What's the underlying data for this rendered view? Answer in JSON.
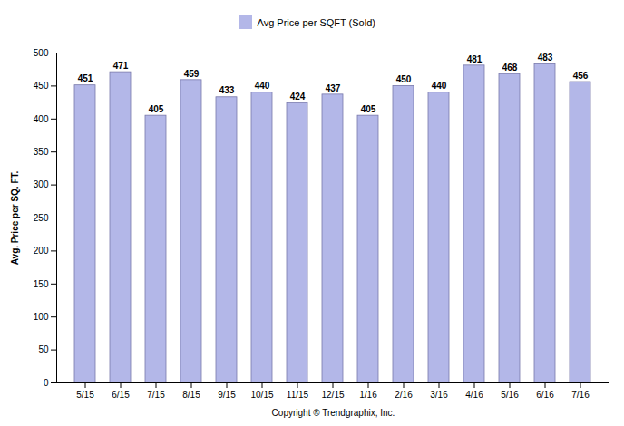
{
  "chart_data": {
    "type": "bar",
    "categories": [
      "5/15",
      "6/15",
      "7/15",
      "8/15",
      "9/15",
      "10/15",
      "11/15",
      "12/15",
      "1/16",
      "2/16",
      "3/16",
      "4/16",
      "5/16",
      "6/16",
      "7/16"
    ],
    "series": [
      {
        "name": "Avg Price per SQFT (Sold)",
        "color": "#b3b7e8",
        "values": [
          451,
          471,
          405,
          459,
          433,
          440,
          424,
          437,
          405,
          450,
          440,
          481,
          468,
          483,
          456
        ]
      }
    ],
    "xlabel": "Copyright ® Trendgraphix, Inc.",
    "ylabel": "Avg. Price per SQ. FT.",
    "ylim": [
      0,
      500
    ],
    "yticks": [
      0,
      50,
      100,
      150,
      200,
      250,
      300,
      350,
      400,
      450,
      500
    ],
    "grid": false,
    "legend": "top",
    "data_labels": true
  }
}
